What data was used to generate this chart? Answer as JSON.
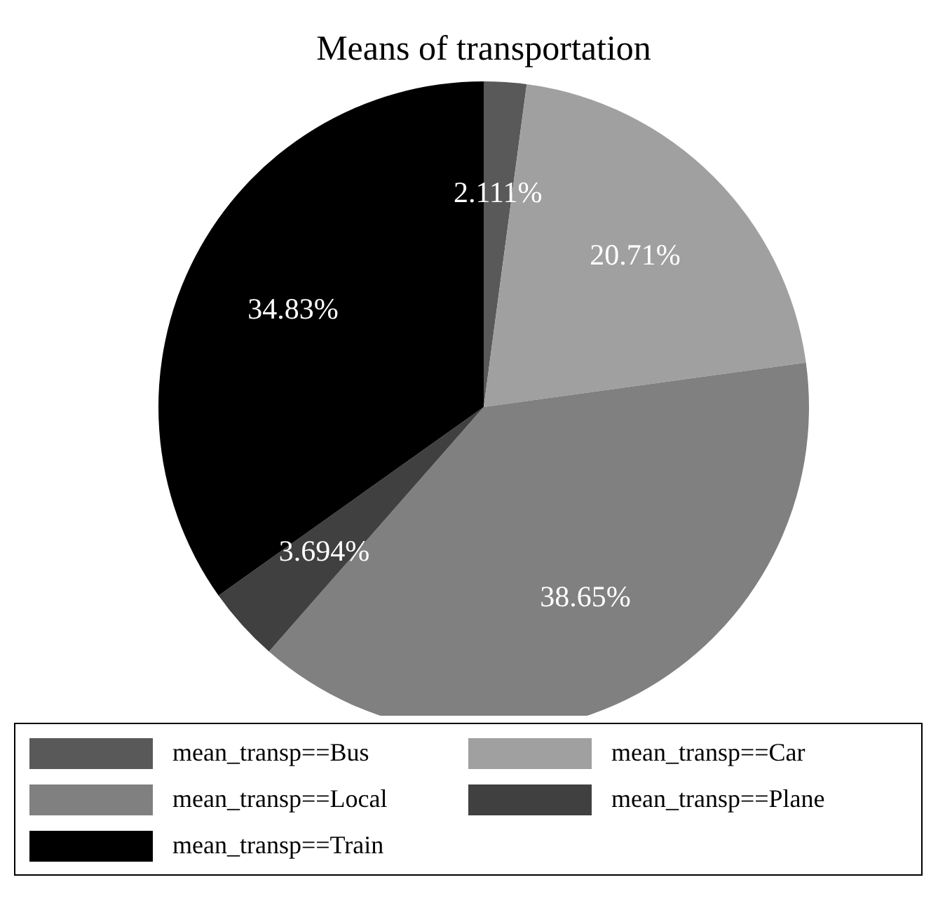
{
  "chart_data": {
    "type": "pie",
    "title": "Means of transportation",
    "categories": [
      "mean_transp==Bus",
      "mean_transp==Car",
      "mean_transp==Local",
      "mean_transp==Plane",
      "mean_transp==Train"
    ],
    "values": [
      2.111,
      20.71,
      38.65,
      3.694,
      34.83
    ],
    "value_labels": [
      "2.111%",
      "20.71%",
      "38.65%",
      "3.694%",
      "34.83%"
    ],
    "colors": [
      "#595959",
      "#a0a0a0",
      "#808080",
      "#404040",
      "#000000"
    ],
    "legend": "bottom"
  }
}
